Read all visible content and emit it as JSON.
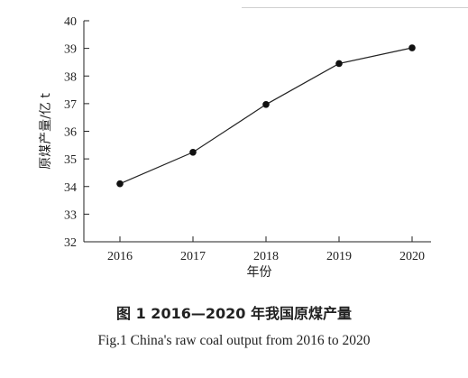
{
  "caption": {
    "zh": "图 1   2016—2020 年我国原煤产量",
    "en": "Fig.1   China's raw coal output from 2016 to 2020"
  },
  "chart_data": {
    "type": "line",
    "title": "",
    "xlabel": "年份",
    "ylabel": "原煤产量/亿 t",
    "categories": [
      "2016",
      "2017",
      "2018",
      "2019",
      "2020"
    ],
    "series": [
      {
        "values": [
          34.1,
          35.24,
          36.97,
          38.45,
          39.02
        ]
      }
    ],
    "ylim": [
      32,
      40
    ],
    "yticks": [
      32,
      33,
      34,
      35,
      36,
      37,
      38,
      39,
      40
    ],
    "grid": false,
    "legend": "none",
    "colors": {
      "line": "#222222",
      "marker": "#111111"
    }
  }
}
